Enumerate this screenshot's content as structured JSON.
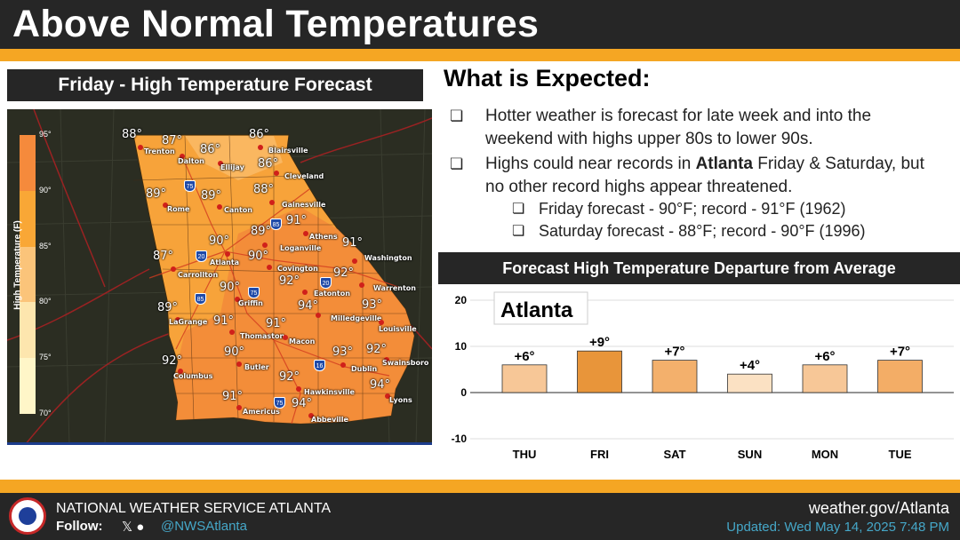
{
  "header": {
    "title": "Above Normal Temperatures"
  },
  "map": {
    "title": "Friday - High Temperature Forecast",
    "legend": {
      "title": "High Temperature (F)",
      "ticks": [
        "95°",
        "90°",
        "85°",
        "80°",
        "75°",
        "70°"
      ],
      "colors": [
        "#f58a3c",
        "#f9a736",
        "#fbc47a",
        "#fde6ae",
        "#fff6c8"
      ]
    },
    "cities": [
      {
        "name": "Trenton",
        "temp": "88°"
      },
      {
        "name": "Dalton",
        "temp": "87°"
      },
      {
        "name": "Ellijay",
        "temp": "86°"
      },
      {
        "name": "Blairsville",
        "temp": "86°"
      },
      {
        "name": "Cleveland",
        "temp": "86°"
      },
      {
        "name": "Gainesville",
        "temp": "88°"
      },
      {
        "name": "Rome",
        "temp": "89°"
      },
      {
        "name": "Canton",
        "temp": "89°"
      },
      {
        "name": "Athens",
        "temp": "91°"
      },
      {
        "name": "Loganville",
        "temp": "89°"
      },
      {
        "name": "Atlanta",
        "temp": "90°"
      },
      {
        "name": "Covington",
        "temp": "90°"
      },
      {
        "name": "Washington",
        "temp": "91°"
      },
      {
        "name": "Carrollton",
        "temp": "87°"
      },
      {
        "name": "Warrenton",
        "temp": "92°"
      },
      {
        "name": "Eatonton",
        "temp": "92°"
      },
      {
        "name": "Griffin",
        "temp": "90°"
      },
      {
        "name": "Milledgeville",
        "temp": "94°"
      },
      {
        "name": "Louisville",
        "temp": "93°"
      },
      {
        "name": "LaGrange",
        "temp": "89°"
      },
      {
        "name": "Thomaston",
        "temp": "91°"
      },
      {
        "name": "Macon",
        "temp": "91°"
      },
      {
        "name": "Columbus",
        "temp": "92°"
      },
      {
        "name": "Butler",
        "temp": "90°"
      },
      {
        "name": "Dublin",
        "temp": "93°"
      },
      {
        "name": "Swainsboro",
        "temp": "92°"
      },
      {
        "name": "Hawkinsville",
        "temp": "92°"
      },
      {
        "name": "Lyons",
        "temp": "94°"
      },
      {
        "name": "Americus",
        "temp": "91°"
      },
      {
        "name": "Abbeville",
        "temp": "94°"
      }
    ],
    "interstates": [
      "75",
      "85",
      "20",
      "20",
      "85",
      "75",
      "16",
      "75"
    ]
  },
  "expected": {
    "title": "What is Expected:",
    "bullets": [
      {
        "text": "Hotter weather is forecast for late week and into the weekend with highs upper 80s to lower 90s."
      },
      {
        "pre": "Highs could near records in ",
        "bold": "Atlanta",
        "post": " Friday & Saturday, but no other record highs appear threatened."
      }
    ],
    "sub_bullets": [
      "Friday forecast - 90°F; record - 91°F (1962)",
      "Saturday forecast - 88°F; record - 90°F (1996)"
    ]
  },
  "chart_data": {
    "type": "bar",
    "title": "Forecast High Temperature Departure from Average",
    "annotation": "Atlanta",
    "categories": [
      "THU",
      "FRI",
      "SAT",
      "SUN",
      "MON",
      "TUE"
    ],
    "values": [
      6,
      9,
      7,
      4,
      6,
      7
    ],
    "data_labels": [
      "+6°",
      "+9°",
      "+7°",
      "+4°",
      "+6°",
      "+7°"
    ],
    "colors": [
      "#f7c797",
      "#e8953a",
      "#f3b06c",
      "#fbe1c3",
      "#f7c797",
      "#f3ad66"
    ],
    "yticks": [
      "20",
      "10",
      "0",
      "-10"
    ],
    "ylim": [
      -10,
      20
    ],
    "grid": true
  },
  "footer": {
    "org": "NATIONAL WEATHER SERVICE ATLANTA",
    "follow": "Follow:",
    "social_icons": "𝕏 ●",
    "handle": "@NWSAtlanta",
    "url": "weather.gov/Atlanta",
    "updated": "Updated: Wed May 14, 2025 7:48 PM"
  },
  "colors": {
    "accent": "#f5a623",
    "dark": "#262626",
    "link": "#45a7c8"
  }
}
